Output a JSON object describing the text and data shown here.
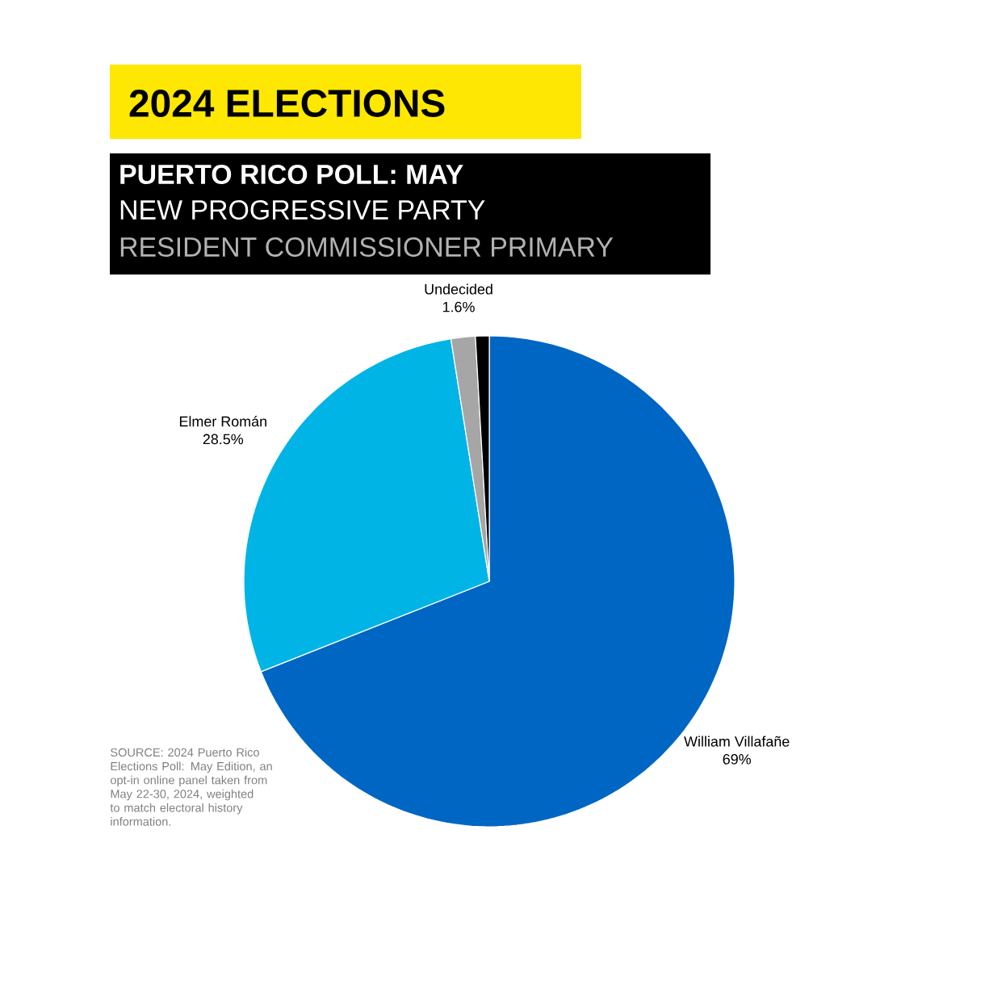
{
  "chart_data": {
    "type": "pie",
    "title": "2024 ELECTIONS",
    "subtitle": "PUERTO RICO POLL: MAY",
    "categories": [
      "William Villafañe",
      "Elmer Román",
      "Undecided",
      null
    ],
    "values": [
      69,
      28.5,
      1.6,
      0.9
    ],
    "colors": [
      "#0066c4",
      "#00b4e6",
      "#a6a6a6",
      "#000000"
    ],
    "value_labels": [
      "69%",
      "28.5%",
      "1.6%",
      null
    ],
    "annotations": [
      "NEW PROGRESSIVE PARTY",
      "RESIDENT COMMISSIONER PRIMARY",
      "SOURCE: 2024 Puerto Rico Elections Poll: May Edition, an opt-in online panel taken from May 22-30, 2024, weighted to match electoral history information."
    ]
  }
}
